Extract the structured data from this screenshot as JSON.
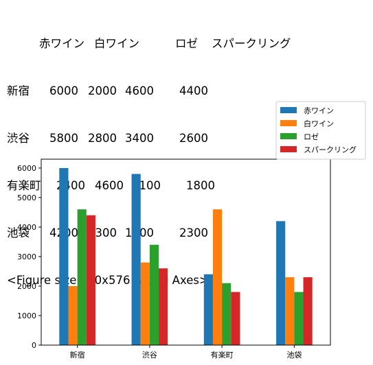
{
  "dataframe": {
    "columns": [
      "赤ワイン",
      "白ワイン",
      "ロゼ",
      "スパークリング"
    ],
    "rows": [
      {
        "index": "新宿",
        "values": [
          "6000",
          "2000",
          "4600",
          "4400"
        ]
      },
      {
        "index": "渋谷",
        "values": [
          "5800",
          "2800",
          "3400",
          "2600"
        ]
      },
      {
        "index": "有楽町",
        "values": [
          "2400",
          "4600",
          "2100",
          "1800"
        ]
      },
      {
        "index": "池袋",
        "values": [
          "4200",
          "2300",
          "1800",
          "2300"
        ]
      }
    ]
  },
  "figure_repr": "<Figure size 720x576 with 0 Axes>",
  "chart_data": {
    "type": "bar",
    "categories": [
      "新宿",
      "渋谷",
      "有楽町",
      "池袋"
    ],
    "series": [
      {
        "name": "赤ワイン",
        "values": [
          6000,
          5800,
          2400,
          4200
        ],
        "color": "#1f77b4"
      },
      {
        "name": "白ワイン",
        "values": [
          2000,
          2800,
          4600,
          2300
        ],
        "color": "#ff7f0e"
      },
      {
        "name": "ロゼ",
        "values": [
          4600,
          3400,
          2100,
          1800
        ],
        "color": "#2ca02c"
      },
      {
        "name": "スパークリング",
        "values": [
          4400,
          2600,
          1800,
          2300
        ],
        "color": "#d62728"
      }
    ],
    "ylim": [
      0,
      6300
    ],
    "yticks": [
      0,
      1000,
      2000,
      3000,
      4000,
      5000,
      6000
    ],
    "grid": false,
    "legend_position": "top-right (outside, above axes)"
  }
}
